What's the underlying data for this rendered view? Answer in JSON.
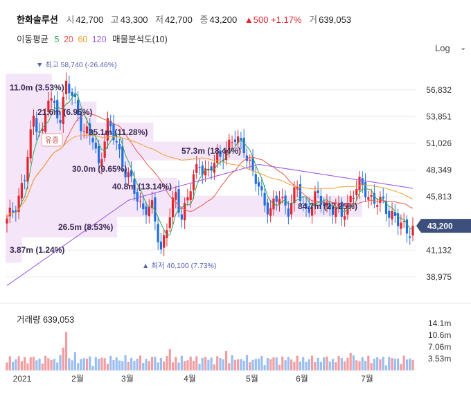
{
  "header": {
    "name": "한화솔루션",
    "open_label": "시",
    "open": "42,700",
    "high_label": "고",
    "high": "43,300",
    "low_label": "저",
    "low": "42,700",
    "close_label": "종",
    "close": "43,200",
    "change": "▲500 +1.17%",
    "volume_label": "거",
    "volume": "639,053"
  },
  "ma_legend": {
    "title": "이동평균",
    "p5": "5",
    "p20": "20",
    "p60": "60",
    "p120": "120",
    "profile": "매물분석도(10)",
    "colors": {
      "p5": "#2fa84f",
      "p20": "#e8564a",
      "p60": "#f0a030",
      "p120": "#9b5de5"
    }
  },
  "scale_label": "Log",
  "price_badge": "43,200",
  "volume_title": "거래량 639,053",
  "colors": {
    "up": "#e0262f",
    "down": "#1f6fe0",
    "profile": "#f3e0f8",
    "badge": "#3d4f7c"
  },
  "chart_data": {
    "type": "candlestick",
    "scale": "log",
    "ylim": [
      38000,
      60500
    ],
    "y_ticks": [
      "56,832",
      "53,851",
      "51,026",
      "48,349",
      "45,813",
      "43,132",
      "41,132",
      "38,975"
    ],
    "x_ticks": [
      "2021",
      "2월",
      "3월",
      "4월",
      "5월",
      "6월",
      "7월"
    ],
    "high_marker": "최고 58,740 (-26.46%)",
    "low_marker": "최저 40,100 (7.73%)",
    "annotation": "유증",
    "volume_ticks": [
      "14.1m",
      "10.6m",
      "7.06m",
      "3.53m"
    ],
    "volume_profile": [
      {
        "label": "11.0m (3.53%)",
        "low": 55500,
        "high": 58700,
        "volume": 11.0
      },
      {
        "label": "21.6m (6.95%)",
        "low": 53200,
        "high": 55500,
        "volume": 21.6
      },
      {
        "label": "35.1m (11.28%)",
        "low": 51200,
        "high": 53200,
        "volume": 35.1
      },
      {
        "label": "57.3m (18.44%)",
        "low": 49300,
        "high": 51200,
        "volume": 57.3
      },
      {
        "label": "30.0m (9.65%)",
        "low": 47600,
        "high": 49300,
        "volume": 30.0
      },
      {
        "label": "40.8m (13.14%)",
        "low": 45900,
        "high": 47600,
        "volume": 40.8
      },
      {
        "label": "84.7m (27.25%)",
        "low": 44000,
        "high": 45900,
        "volume": 84.7
      },
      {
        "label": "26.5m (8.53%)",
        "low": 42200,
        "high": 44000,
        "volume": 26.5
      },
      {
        "label": "3.87m (1.24%)",
        "low": 40100,
        "high": 42200,
        "volume": 3.87
      }
    ]
  }
}
